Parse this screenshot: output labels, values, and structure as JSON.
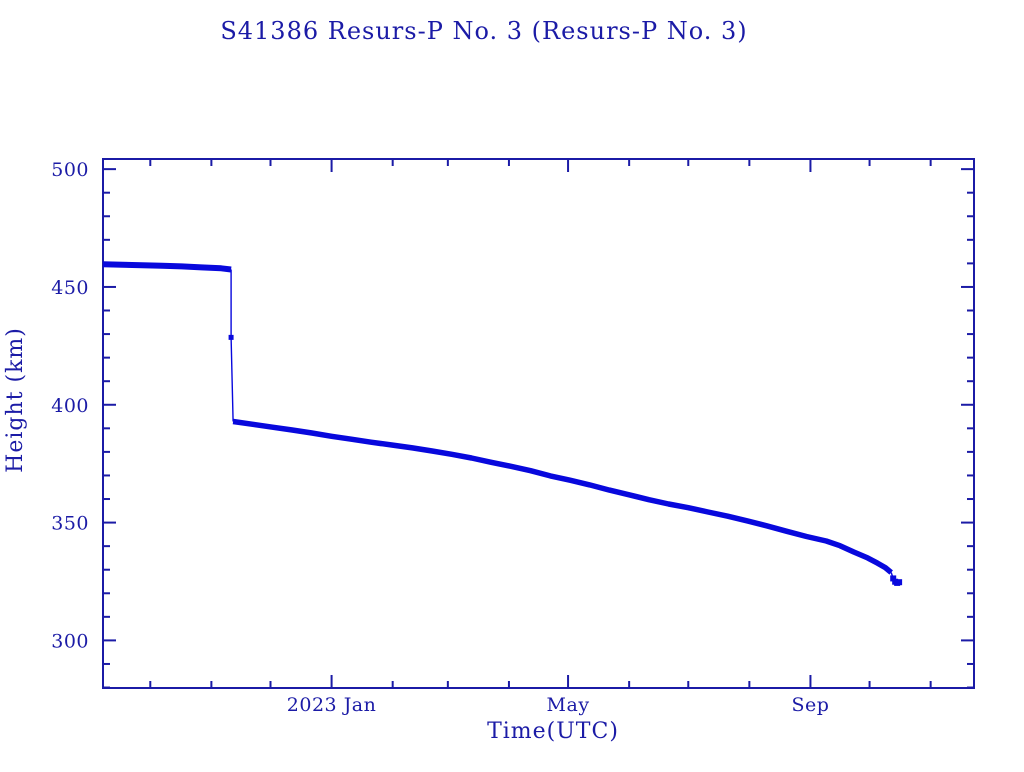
{
  "window": {
    "background": "#ffffff"
  },
  "chart_data": {
    "type": "line",
    "title": "S41386 Resurs-P No. 3  (Resurs-P No. 3)",
    "xlabel": "Time(UTC)",
    "ylabel": "Height (km)",
    "legend": "none",
    "grid": false,
    "colors": {
      "axis": "#1b1ba6",
      "series": "#0808dd",
      "background": "#ffffff"
    },
    "x_axis": {
      "range": [
        "2022-09-07",
        "2023-11-23"
      ],
      "major_ticks": [
        {
          "date": "2023-01-01",
          "label": "2023 Jan"
        },
        {
          "date": "2023-05-01",
          "label": "May"
        },
        {
          "date": "2023-09-01",
          "label": "Sep"
        }
      ],
      "minor_ticks": [
        "2022-10-01",
        "2022-11-01",
        "2022-12-01",
        "2023-02-01",
        "2023-03-01",
        "2023-04-01",
        "2023-06-01",
        "2023-07-01",
        "2023-08-01",
        "2023-10-01",
        "2023-11-01"
      ]
    },
    "y_axis": {
      "min": 279.8,
      "max": 504.3,
      "unit": "km",
      "major_ticks": [
        500,
        450,
        400,
        350,
        300
      ],
      "minor_step": 10
    },
    "series": [
      {
        "name": "pre-maneuver-plateau",
        "stroke_width": 6,
        "marker_size": 0,
        "points": [
          [
            "2022-09-07",
            459.6
          ],
          [
            "2022-09-17",
            459.4
          ],
          [
            "2022-09-27",
            459.2
          ],
          [
            "2022-10-07",
            459.0
          ],
          [
            "2022-10-17",
            458.7
          ],
          [
            "2022-10-27",
            458.3
          ],
          [
            "2022-11-06",
            457.9
          ],
          [
            "2022-11-11",
            457.4
          ]
        ]
      },
      {
        "name": "maneuver-drop",
        "stroke_width": 1.4,
        "marker_size": 5,
        "points": [
          [
            "2022-11-11",
            457.4
          ],
          [
            "2022-11-11",
            428.6
          ],
          [
            "2022-11-12",
            392.9
          ]
        ],
        "marker_points": [
          [
            "2022-11-11",
            428.6
          ]
        ]
      },
      {
        "name": "post-maneuver-decay",
        "stroke_width": 5.5,
        "marker_size": 0,
        "points": [
          [
            "2022-11-12",
            392.9
          ],
          [
            "2022-11-22",
            391.7
          ],
          [
            "2022-12-02",
            390.5
          ],
          [
            "2022-12-12",
            389.3
          ],
          [
            "2022-12-22",
            388.0
          ],
          [
            "2023-01-01",
            386.6
          ],
          [
            "2023-01-11",
            385.4
          ],
          [
            "2023-01-21",
            384.1
          ],
          [
            "2023-02-01",
            382.9
          ],
          [
            "2023-02-11",
            381.7
          ],
          [
            "2023-02-21",
            380.4
          ],
          [
            "2023-03-03",
            379.0
          ],
          [
            "2023-03-13",
            377.4
          ],
          [
            "2023-03-23",
            375.6
          ],
          [
            "2023-04-02",
            373.9
          ],
          [
            "2023-04-12",
            372.0
          ],
          [
            "2023-04-22",
            369.8
          ],
          [
            "2023-05-02",
            368.0
          ],
          [
            "2023-05-12",
            366.0
          ],
          [
            "2023-05-22",
            363.8
          ],
          [
            "2023-06-01",
            361.8
          ],
          [
            "2023-06-11",
            359.7
          ],
          [
            "2023-06-21",
            357.9
          ],
          [
            "2023-07-01",
            356.3
          ],
          [
            "2023-07-11",
            354.5
          ],
          [
            "2023-07-21",
            352.7
          ],
          [
            "2023-07-31",
            350.7
          ],
          [
            "2023-08-10",
            348.6
          ],
          [
            "2023-08-20",
            346.3
          ],
          [
            "2023-08-30",
            344.1
          ],
          [
            "2023-09-09",
            342.2
          ],
          [
            "2023-09-16",
            340.2
          ],
          [
            "2023-09-23",
            337.5
          ],
          [
            "2023-09-30",
            335.0
          ],
          [
            "2023-10-05",
            332.8
          ],
          [
            "2023-10-09",
            330.9
          ],
          [
            "2023-10-12",
            328.8
          ]
        ]
      },
      {
        "name": "final-decay",
        "stroke_width": 1.4,
        "marker_size": 6,
        "points": [
          [
            "2023-10-12",
            328.8
          ],
          [
            "2023-10-13",
            326.3
          ],
          [
            "2023-10-14",
            324.9
          ]
        ],
        "marker_points": [
          [
            "2023-10-13",
            326.3
          ],
          [
            "2023-10-14",
            324.9
          ],
          [
            "2023-10-15",
            324.4
          ],
          [
            "2023-10-16",
            324.7
          ]
        ]
      }
    ]
  }
}
